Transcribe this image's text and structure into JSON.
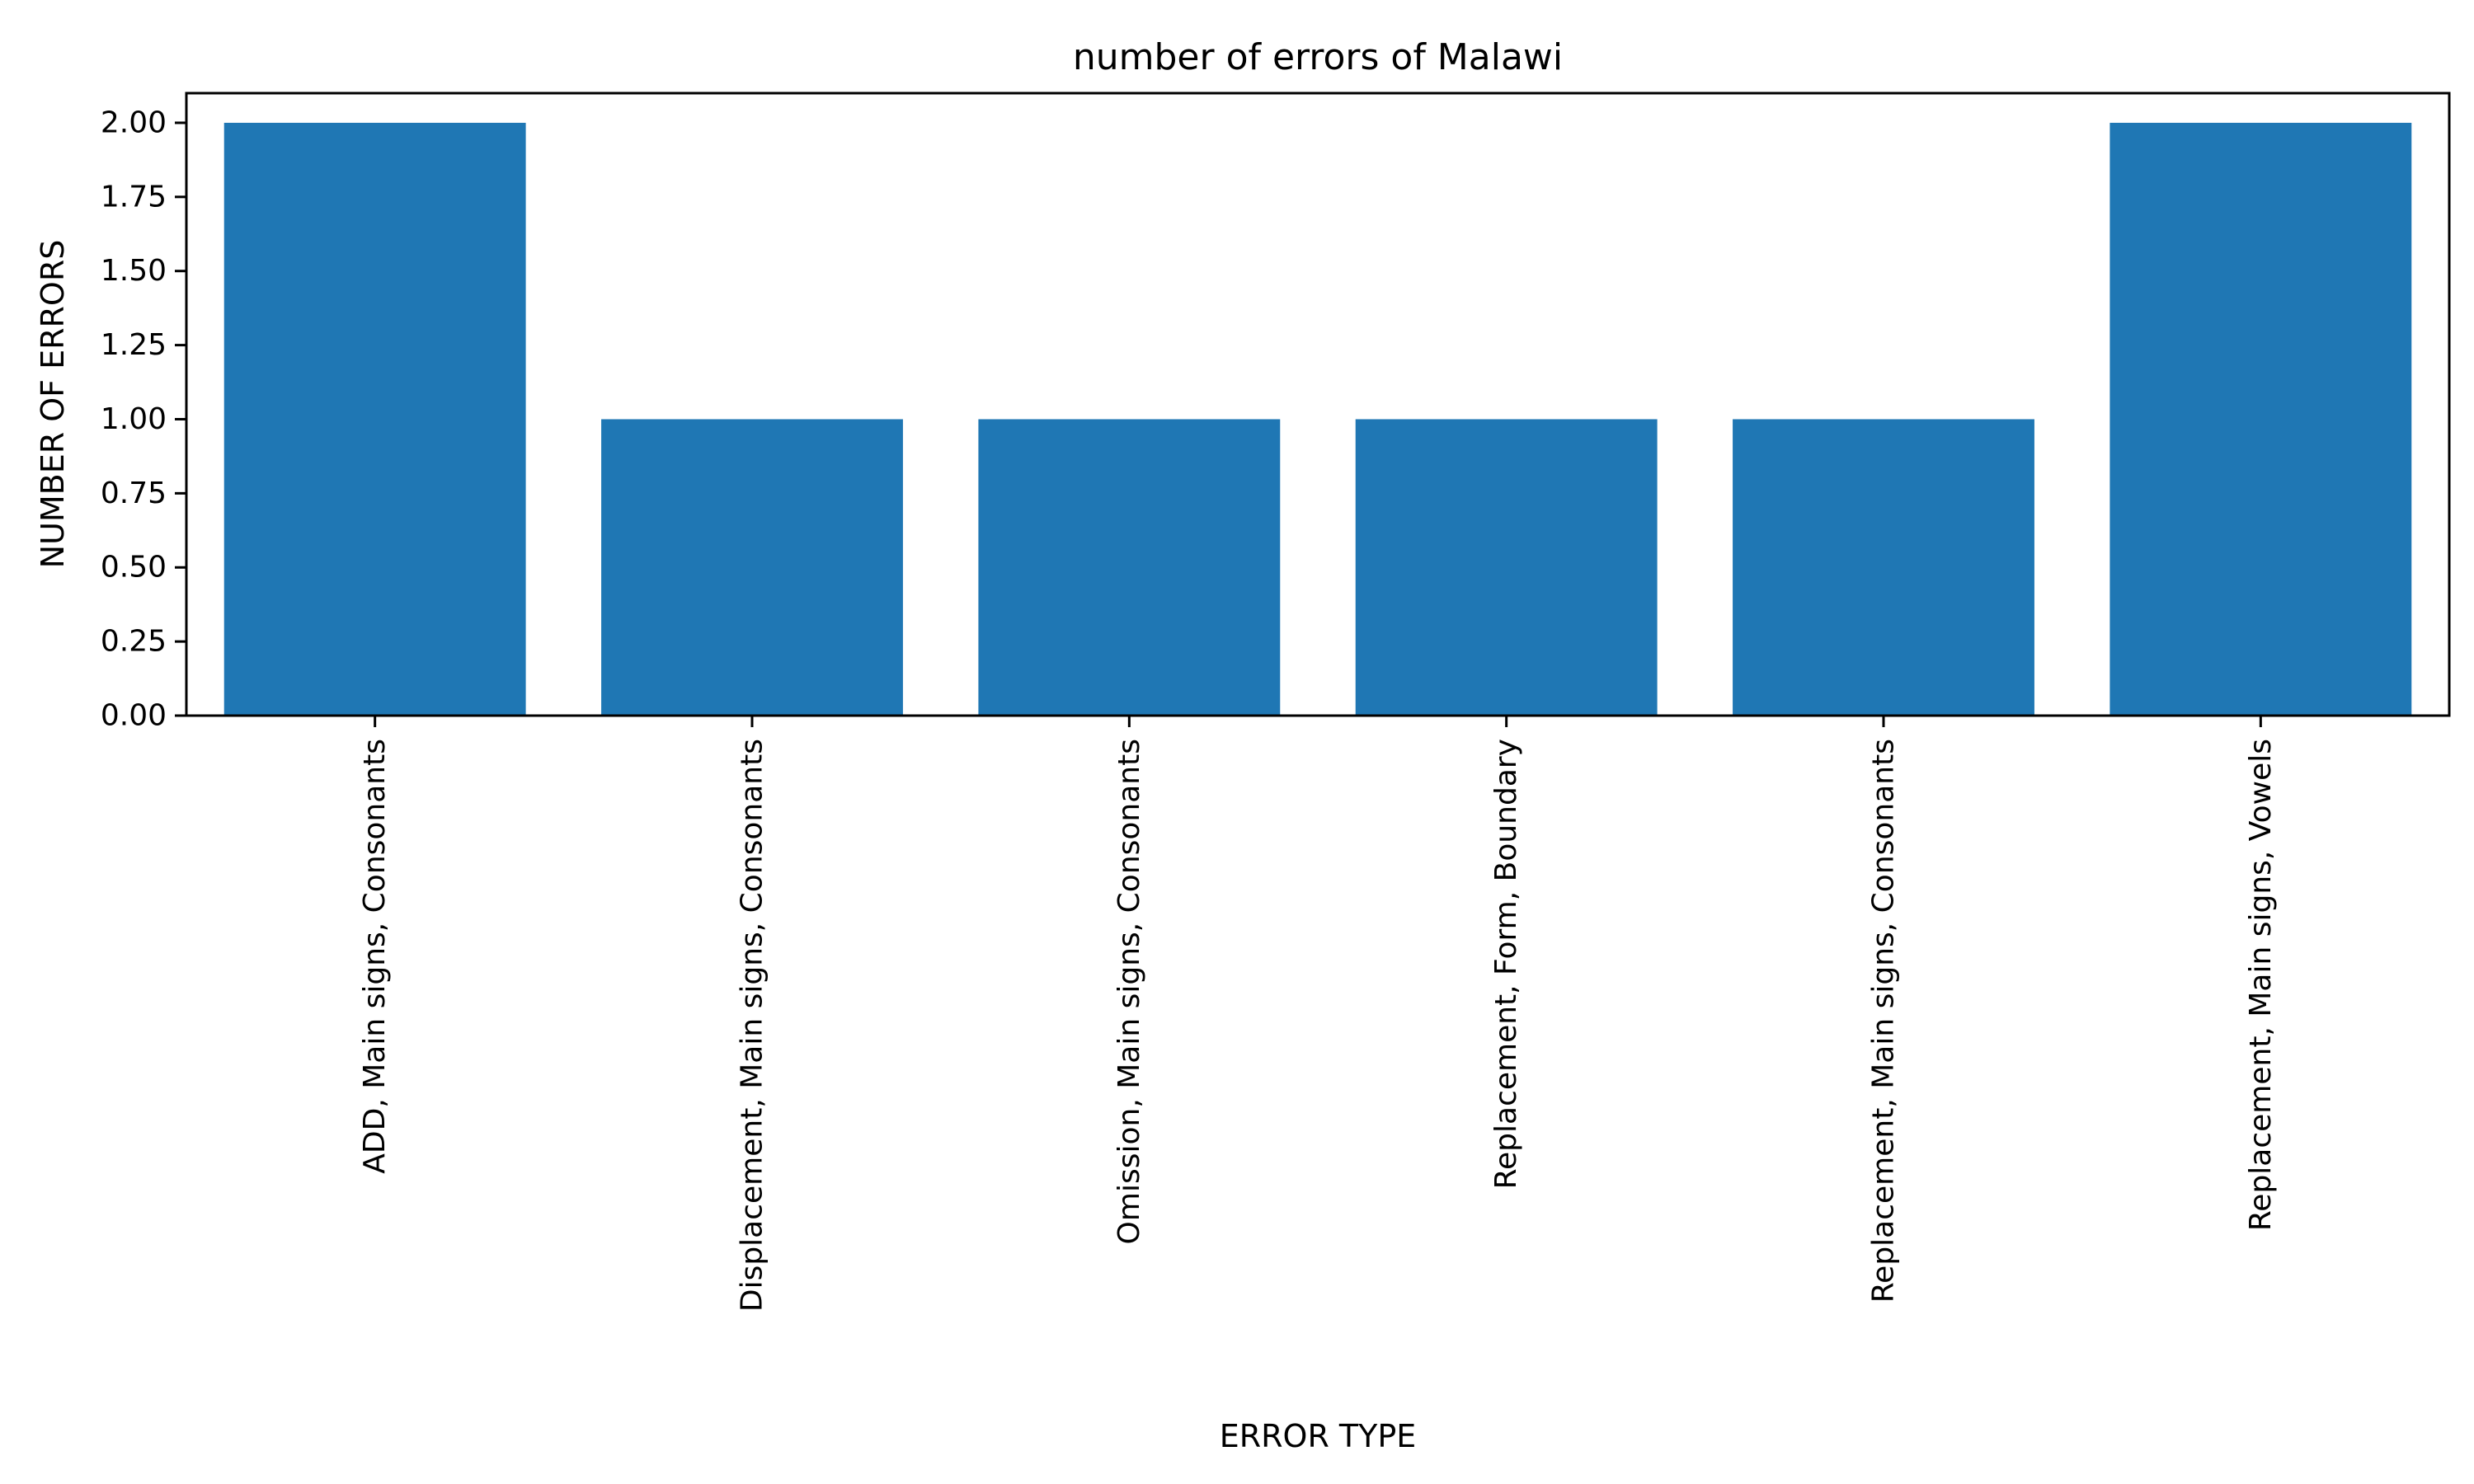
{
  "chart_data": {
    "type": "bar",
    "title": "number of errors of Malawi",
    "xlabel": "ERROR TYPE",
    "ylabel": "NUMBER OF ERRORS",
    "categories": [
      "ADD, Main signs, Consonants",
      "Displacement, Main signs, Consonants",
      "Omission, Main signs, Consonants",
      "Replacement, Form, Boundary",
      "Replacement, Main signs, Consonants",
      "Replacement, Main signs, Vowels"
    ],
    "values": [
      2,
      1,
      1,
      1,
      1,
      2
    ],
    "ylim": [
      0,
      2.1
    ],
    "yticks": [
      0,
      0.25,
      0.5,
      0.75,
      1.0,
      1.25,
      1.5,
      1.75,
      2.0
    ],
    "ytick_labels": [
      "0.00",
      "0.25",
      "0.50",
      "0.75",
      "1.00",
      "1.25",
      "1.50",
      "1.75",
      "2.00"
    ],
    "bar_color": "#1f77b4",
    "grid": false
  }
}
